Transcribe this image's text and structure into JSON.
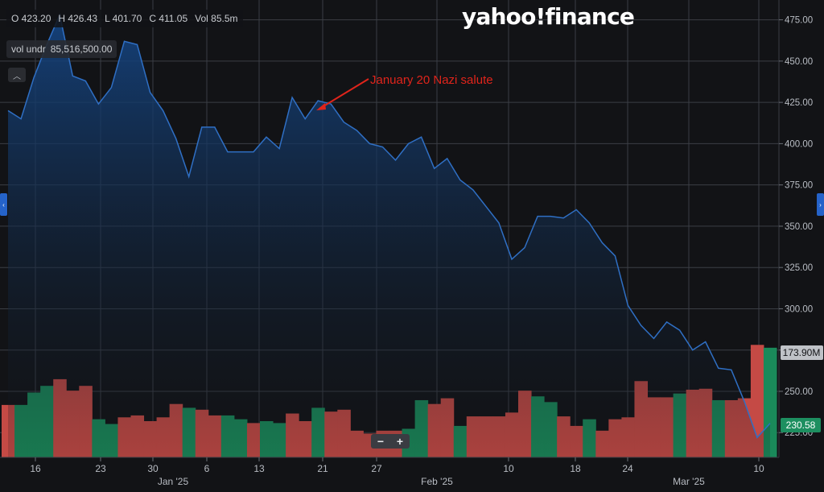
{
  "brand": "yahoo!finance",
  "ohlc": {
    "open": "O 423.20",
    "high": "H 426.43",
    "low": "L 401.70",
    "close": "C 411.05",
    "vol": "Vol 85.5m"
  },
  "volume_legend": {
    "label": "vol undr",
    "value": "85,516,500.00"
  },
  "zoom": {
    "minus": "−",
    "plus": "+"
  },
  "colors": {
    "line": "#2f6fc4",
    "area_top": "#14437f",
    "area_bottom": "#121316",
    "vol_up": "#1a8a5a",
    "vol_down": "#c54a45",
    "annotation": "#e0241b",
    "badge_price": "#1d8f60",
    "badge_volume": "#bfc2c7"
  },
  "chart_data": {
    "type": "line",
    "price_axis": {
      "ticks": [
        "475.00",
        "450.00",
        "425.00",
        "400.00",
        "375.00",
        "350.00",
        "325.00",
        "300.00",
        "275.00",
        "250.00",
        "225.00"
      ],
      "min": 210,
      "max": 487
    },
    "x_ticks": [
      "16",
      "23",
      "30",
      "6",
      "13",
      "21",
      "27",
      "10",
      "18",
      "24",
      "10"
    ],
    "month_labels": [
      "Jan '25",
      "Feb '25",
      "Mar '25"
    ],
    "price": [
      420,
      415,
      440,
      460,
      478,
      441,
      438,
      424,
      434,
      462,
      460,
      431,
      420,
      403,
      380,
      410,
      410,
      395,
      395,
      395,
      404,
      397,
      428,
      415,
      426,
      424,
      413,
      408,
      400,
      398,
      390,
      400,
      404,
      385,
      391,
      378,
      372,
      362,
      352,
      330,
      337,
      356,
      356,
      355,
      360,
      352,
      340,
      332,
      302,
      290,
      282,
      292,
      287,
      275,
      280,
      264,
      263,
      244,
      222,
      230.58
    ],
    "volume": [
      55,
      55,
      68,
      75,
      82,
      70,
      75,
      40,
      35,
      42,
      44,
      38,
      42,
      56,
      52,
      50,
      44,
      44,
      40,
      36,
      38,
      36,
      46,
      38,
      52,
      48,
      50,
      28,
      25,
      28,
      28,
      30,
      60,
      56,
      62,
      33,
      43,
      43,
      43,
      47,
      70,
      64,
      58,
      43,
      33,
      40,
      28,
      40,
      42,
      80,
      63,
      63,
      67,
      71,
      72,
      60,
      60,
      62,
      118,
      115
    ],
    "volume_up": [
      false,
      true,
      true,
      true,
      false,
      false,
      false,
      true,
      true,
      false,
      false,
      false,
      false,
      false,
      true,
      false,
      false,
      true,
      true,
      false,
      true,
      true,
      false,
      false,
      true,
      false,
      false,
      false,
      false,
      false,
      false,
      true,
      true,
      false,
      false,
      true,
      false,
      false,
      false,
      false,
      false,
      true,
      true,
      false,
      false,
      true,
      false,
      false,
      false,
      false,
      false,
      false,
      true,
      false,
      false,
      true,
      false,
      false,
      false,
      true
    ],
    "badges": {
      "price": "230.58",
      "volume": "173.90M"
    },
    "annotation": "January 20 Nazi salute"
  }
}
